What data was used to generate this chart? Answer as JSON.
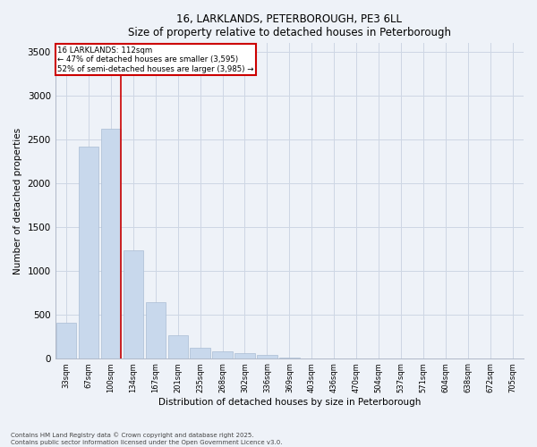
{
  "title_line1": "16, LARKLANDS, PETERBOROUGH, PE3 6LL",
  "title_line2": "Size of property relative to detached houses in Peterborough",
  "xlabel": "Distribution of detached houses by size in Peterborough",
  "ylabel": "Number of detached properties",
  "categories": [
    "33sqm",
    "67sqm",
    "100sqm",
    "134sqm",
    "167sqm",
    "201sqm",
    "235sqm",
    "268sqm",
    "302sqm",
    "336sqm",
    "369sqm",
    "403sqm",
    "436sqm",
    "470sqm",
    "504sqm",
    "537sqm",
    "571sqm",
    "604sqm",
    "638sqm",
    "672sqm",
    "705sqm"
  ],
  "values": [
    400,
    2420,
    2620,
    1230,
    640,
    260,
    120,
    75,
    55,
    35,
    5,
    0,
    0,
    0,
    0,
    0,
    0,
    0,
    0,
    0,
    0
  ],
  "bar_color": "#c8d8ec",
  "bar_edgecolor": "#aabdd4",
  "vline_color": "#cc0000",
  "vline_x_index": 2,
  "annotation_title": "16 LARKLANDS: 112sqm",
  "annotation_line2": "← 47% of detached houses are smaller (3,595)",
  "annotation_line3": "52% of semi-detached houses are larger (3,985) →",
  "annotation_box_color": "#cc0000",
  "ylim": [
    0,
    3600
  ],
  "yticks": [
    0,
    500,
    1000,
    1500,
    2000,
    2500,
    3000,
    3500
  ],
  "grid_color": "#cdd6e4",
  "footnote_line1": "Contains HM Land Registry data © Crown copyright and database right 2025.",
  "footnote_line2": "Contains public sector information licensed under the Open Government Licence v3.0.",
  "bg_color": "#eef2f8"
}
